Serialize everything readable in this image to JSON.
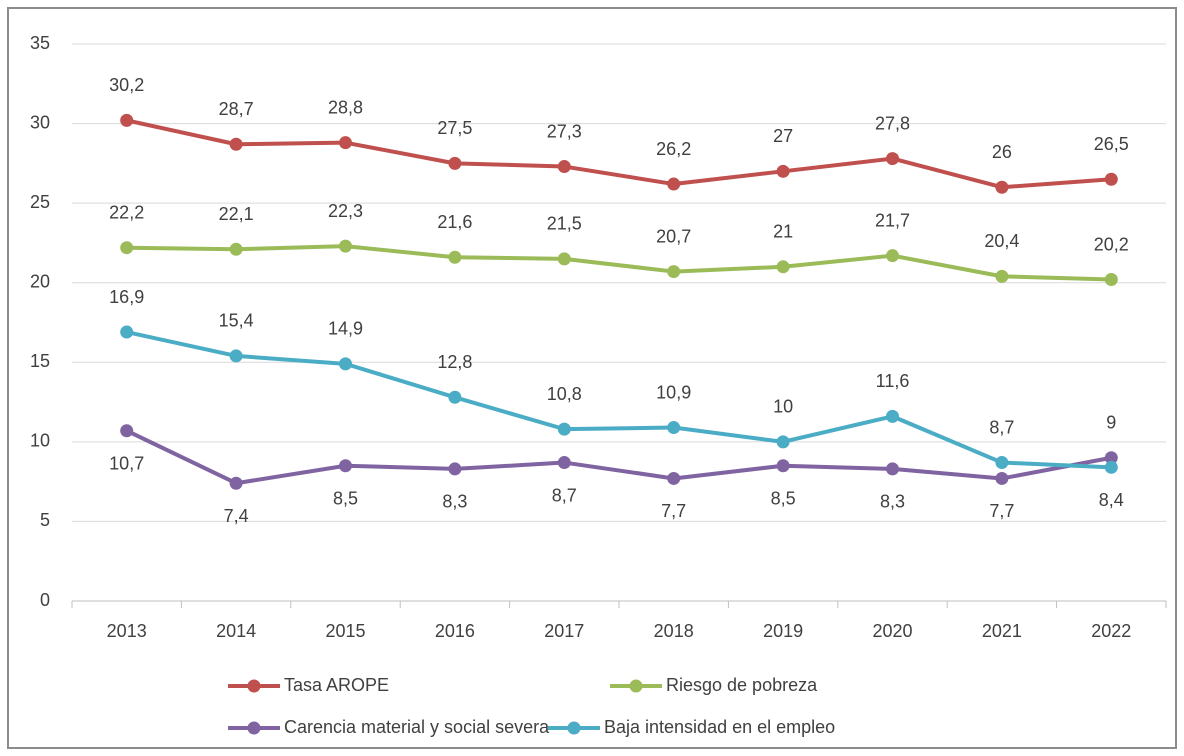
{
  "chart_data": {
    "type": "line",
    "categories": [
      "2013",
      "2014",
      "2015",
      "2016",
      "2017",
      "2018",
      "2019",
      "2020",
      "2021",
      "2022"
    ],
    "series": [
      {
        "name": "Tasa AROPE",
        "color": "#c0504d",
        "values": [
          30.2,
          28.7,
          28.8,
          27.5,
          27.3,
          26.2,
          27,
          27.8,
          26,
          26.5
        ],
        "value_labels": [
          "30,2",
          "28,7",
          "28,8",
          "27,5",
          "27,3",
          "26,2",
          "27",
          "27,8",
          "26",
          "26,5"
        ]
      },
      {
        "name": "Riesgo de pobreza",
        "color": "#9bbb59",
        "values": [
          22.2,
          22.1,
          22.3,
          21.6,
          21.5,
          20.7,
          21,
          21.7,
          20.4,
          20.2
        ],
        "value_labels": [
          "22,2",
          "22,1",
          "22,3",
          "21,6",
          "21,5",
          "20,7",
          "21",
          "21,7",
          "20,4",
          "20,2"
        ]
      },
      {
        "name": "Carencia material y social severa",
        "color": "#8064a2",
        "values": [
          10.7,
          7.4,
          8.5,
          8.3,
          8.7,
          7.7,
          8.5,
          8.3,
          7.7,
          9
        ],
        "value_labels": [
          "10,7",
          "7,4",
          "8,5",
          "8,3",
          "8,7",
          "7,7",
          "8,5",
          "8,3",
          "7,7",
          "9"
        ]
      },
      {
        "name": "Baja intensidad en el empleo",
        "color": "#4bacc6",
        "values": [
          16.9,
          15.4,
          14.9,
          12.8,
          10.8,
          10.9,
          10,
          11.6,
          8.7,
          8.4
        ],
        "value_labels": [
          "16,9",
          "15,4",
          "14,9",
          "12,8",
          "10,8",
          "10,9",
          "10",
          "11,6",
          "8,7",
          "8,4"
        ]
      }
    ],
    "ylim": [
      0,
      35
    ],
    "yticks": [
      0,
      5,
      10,
      15,
      20,
      25,
      30,
      35
    ],
    "grid": true
  }
}
